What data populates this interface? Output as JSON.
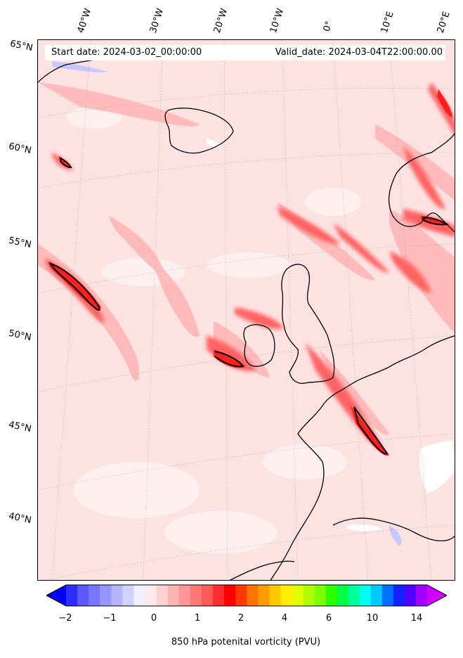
{
  "map": {
    "start_date": "Start date: 2024-03-02_00:00:00",
    "valid_date": "Valid_date: 2024-03-04T22:00:00.00",
    "longitude_labels": [
      "40°W",
      "30°W",
      "20°W",
      "10°W",
      "0°",
      "10°E",
      "20°E"
    ],
    "latitude_labels": [
      "65°N",
      "60°N",
      "55°N",
      "50°N",
      "45°N",
      "40°N"
    ],
    "background_color": "#fde2e2",
    "coastline_color": "#000000"
  },
  "colorbar": {
    "label": "850 hPa potenital vorticity (PVU)",
    "tick_labels": [
      "−2",
      "−1",
      "0",
      "1",
      "2",
      "4",
      "6",
      "10",
      "14"
    ],
    "colors": [
      "#0000ff",
      "#2d2dff",
      "#5a5aff",
      "#7878ff",
      "#9696ff",
      "#b4b4ff",
      "#d2d2ff",
      "#f0f0ff",
      "#ffeaea",
      "#ffd2d2",
      "#ffb4b4",
      "#ff9696",
      "#ff7878",
      "#ff5a5a",
      "#ff2d2d",
      "#ff0000",
      "#ff3a00",
      "#ff7400",
      "#ff9c00",
      "#ffc800",
      "#ffee00",
      "#e1ff00",
      "#b0ff00",
      "#7cff00",
      "#2cff00",
      "#00ff44",
      "#00ff9c",
      "#00fff0",
      "#00c8ff",
      "#0070ff",
      "#1420ff",
      "#5000ff",
      "#a000ff",
      "#d200ff"
    ]
  }
}
